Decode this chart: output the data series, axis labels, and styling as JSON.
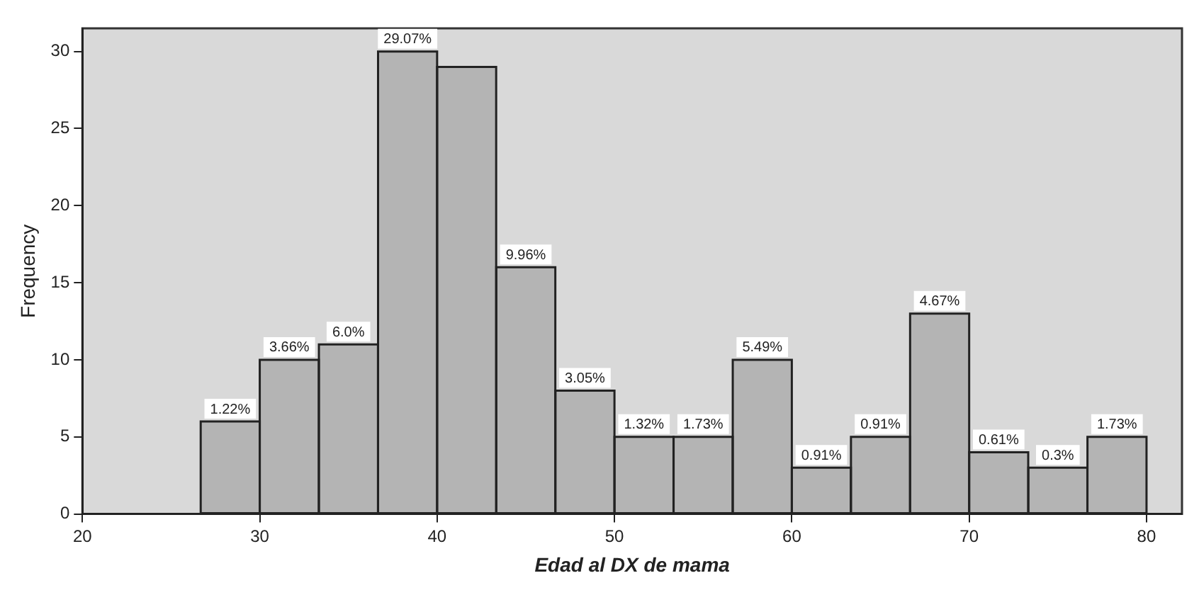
{
  "chart_data": {
    "type": "histogram",
    "xlabel": "Edad al DX de mama",
    "ylabel": "Frequency",
    "bins": [
      26.67,
      30,
      33.33,
      36.67,
      40,
      43.33,
      46.67,
      50,
      53.33,
      56.67,
      60,
      63.33,
      66.67,
      70,
      73.33,
      76.67,
      80
    ],
    "values": [
      6,
      10,
      11,
      30,
      29,
      16,
      8,
      5,
      5,
      10,
      3,
      5,
      13,
      4,
      3,
      5
    ],
    "annotations": [
      {
        "text": "1.22%",
        "x": 28.335,
        "y": 6
      },
      {
        "text": "3.66%",
        "x": 31.665,
        "y": 10
      },
      {
        "text": "6.0%",
        "x": 35,
        "y": 11
      },
      {
        "text": "29.07%",
        "x": 38.335,
        "y": 30
      },
      {
        "text": "9.96%",
        "x": 45,
        "y": 16
      },
      {
        "text": "3.05%",
        "x": 48.335,
        "y": 8
      },
      {
        "text": "1.32%",
        "x": 51.665,
        "y": 5
      },
      {
        "text": "1.73%",
        "x": 55,
        "y": 5
      },
      {
        "text": "5.49%",
        "x": 58.335,
        "y": 10
      },
      {
        "text": "0.91%",
        "x": 61.665,
        "y": 3
      },
      {
        "text": "0.91%",
        "x": 65,
        "y": 5
      },
      {
        "text": "4.67%",
        "x": 68.335,
        "y": 13
      },
      {
        "text": "0.61%",
        "x": 71.665,
        "y": 4
      },
      {
        "text": "0.3%",
        "x": 75,
        "y": 3
      },
      {
        "text": "1.73%",
        "x": 78.335,
        "y": 5
      }
    ],
    "color": "#b4b4b4",
    "xlim": [
      20,
      82
    ],
    "xticks": [
      20,
      30,
      40,
      50,
      60,
      70,
      80
    ],
    "ylim": [
      0,
      31.5
    ],
    "yticks": [
      0,
      5,
      10,
      15,
      20,
      25,
      30
    ],
    "grid": false,
    "legend": false
  }
}
